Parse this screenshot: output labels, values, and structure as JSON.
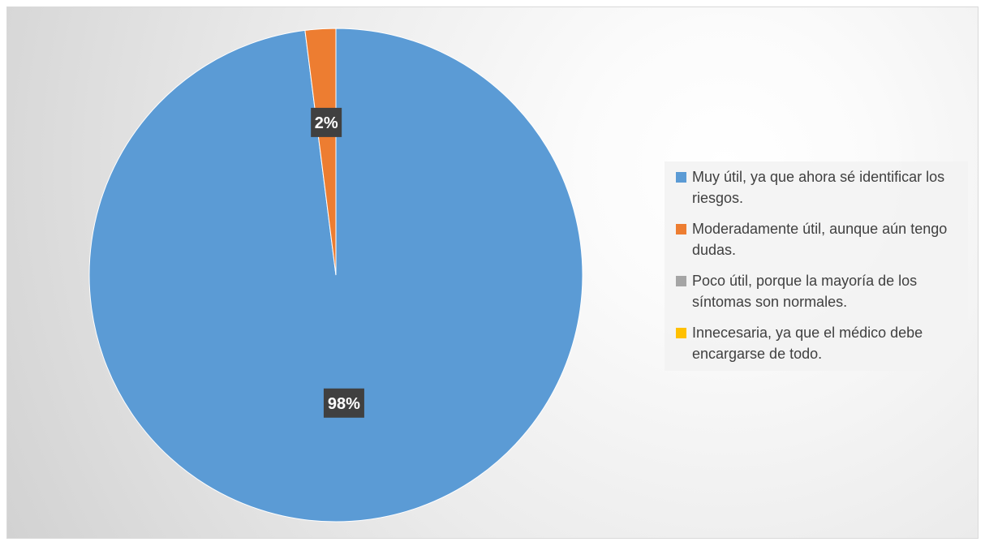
{
  "chart_data": {
    "type": "pie",
    "title": "",
    "categories": [
      "Muy útil, ya que ahora sé identificar los riesgos.",
      "Moderadamente útil, aunque aún tengo dudas.",
      "Poco útil, porque la mayoría de los síntomas son normales.",
      "Innecesaria, ya que el médico debe encargarse de todo."
    ],
    "values": [
      98,
      2,
      0,
      0
    ],
    "data_labels": [
      "98%",
      "2%",
      "",
      ""
    ],
    "colors": [
      "#5b9bd5",
      "#ed7d31",
      "#a5a5a5",
      "#ffc000"
    ],
    "legend_position": "right"
  },
  "legend": {
    "items": [
      {
        "label": "Muy útil, ya que ahora sé identificar los riesgos.",
        "color": "#5b9bd5"
      },
      {
        "label": "Moderadamente útil, aunque aún tengo dudas.",
        "color": "#ed7d31"
      },
      {
        "label": "Poco útil, porque la mayoría de los síntomas son normales.",
        "color": "#a5a5a5"
      },
      {
        "label": "Innecesaria, ya que el médico debe encargarse de todo.",
        "color": "#ffc000"
      }
    ]
  }
}
